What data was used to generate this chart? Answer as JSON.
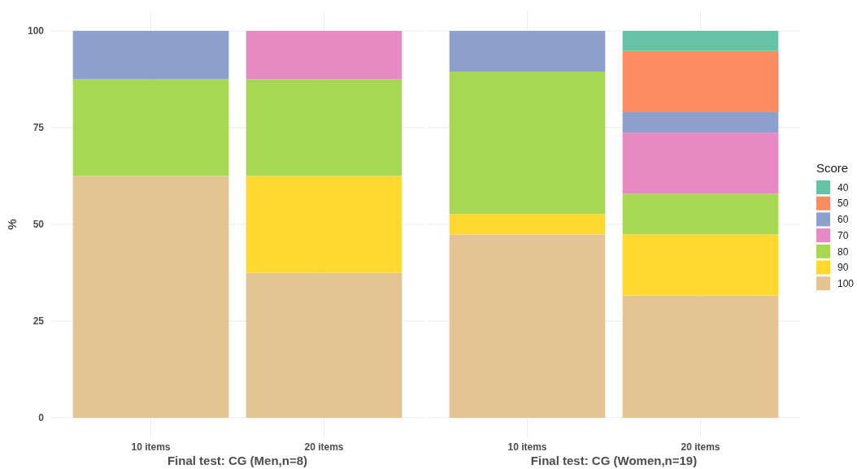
{
  "chart_data": [
    {
      "type": "bar",
      "stacked": true,
      "categories": [
        "10 items",
        "20 items"
      ],
      "xlabel": "Final test: CG (Men,n=8)",
      "ylabel": "%",
      "ylim": [
        0,
        100
      ],
      "yticks": [
        0,
        25,
        50,
        75,
        100
      ],
      "grid": true,
      "legend": false,
      "series": [
        {
          "color": "#e5c494",
          "values": [
            62.5,
            37.5
          ]
        },
        {
          "color": "#ffd92f",
          "values": [
            null,
            25
          ]
        },
        {
          "color": "#a6d854",
          "values": [
            25,
            25
          ]
        },
        {
          "color": "#e78ac3",
          "values": [
            null,
            12.5
          ]
        },
        {
          "color": "#8da0cb",
          "values": [
            12.5,
            null
          ]
        }
      ]
    },
    {
      "type": "bar",
      "stacked": true,
      "categories": [
        "10 items",
        "20 items"
      ],
      "xlabel": "Final test: CG (Women,n=19)",
      "ylim": [
        0,
        100
      ],
      "yticks": [
        0,
        25,
        50,
        75,
        100
      ],
      "grid": true,
      "tick_labels": "x",
      "legend": "right",
      "legend_title": "Score",
      "series": [
        {
          "name": "100",
          "color": "#e5c494",
          "values": [
            47.4,
            31.6
          ]
        },
        {
          "name": "90",
          "color": "#ffd92f",
          "values": [
            5.3,
            15.8
          ]
        },
        {
          "name": "80",
          "color": "#a6d854",
          "values": [
            36.8,
            10.5
          ]
        },
        {
          "name": "70",
          "color": "#e78ac3",
          "values": [
            null,
            15.8
          ]
        },
        {
          "name": "60",
          "color": "#8da0cb",
          "values": [
            10.5,
            5.3
          ]
        },
        {
          "name": "50",
          "color": "#fc8d62",
          "values": [
            null,
            15.8
          ]
        },
        {
          "name": "40",
          "color": "#66c2a5",
          "values": [
            null,
            5.2
          ]
        }
      ]
    }
  ]
}
